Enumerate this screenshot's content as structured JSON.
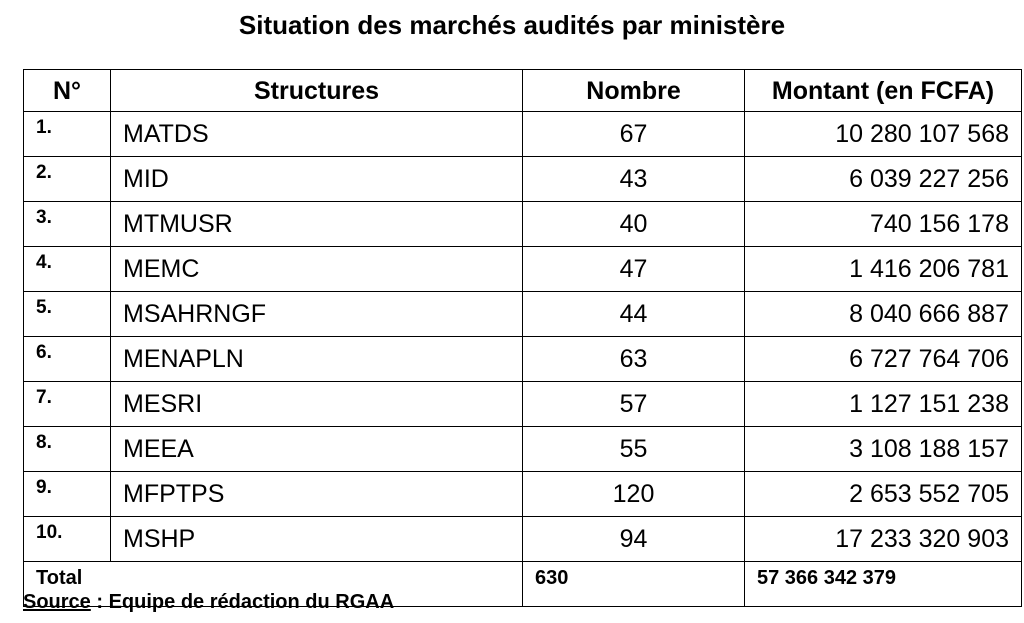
{
  "title": "Situation des marchés audités par ministère",
  "table": {
    "headers": {
      "num": "N°",
      "structures": "Structures",
      "nombre": "Nombre",
      "montant": "Montant (en FCFA)"
    },
    "rows": [
      {
        "num": "1.",
        "structure": "MATDS",
        "nombre": "67",
        "montant": "10 280 107 568"
      },
      {
        "num": "2.",
        "structure": "MID",
        "nombre": "43",
        "montant": "6 039 227 256"
      },
      {
        "num": "3.",
        "structure": "MTMUSR",
        "nombre": "40",
        "montant": "740 156 178"
      },
      {
        "num": "4.",
        "structure": "MEMC",
        "nombre": "47",
        "montant": "1 416 206 781"
      },
      {
        "num": "5.",
        "structure": "MSAHRNGF",
        "nombre": "44",
        "montant": "8 040 666 887"
      },
      {
        "num": "6.",
        "structure": "MENAPLN",
        "nombre": "63",
        "montant": "6 727 764 706"
      },
      {
        "num": "7.",
        "structure": "MESRI",
        "nombre": "57",
        "montant": "1 127 151 238"
      },
      {
        "num": "8.",
        "structure": "MEEA",
        "nombre": "55",
        "montant": "3 108 188 157"
      },
      {
        "num": "9.",
        "structure": "MFPTPS",
        "nombre": "120",
        "montant": "2 653 552 705"
      },
      {
        "num": "10.",
        "structure": "MSHP",
        "nombre": "94",
        "montant": "17 233 320 903"
      }
    ],
    "total": {
      "label": "Total",
      "nombre": "630",
      "montant": "57 366 342 379"
    }
  },
  "source": {
    "label": "Source",
    "text": " : Equipe de rédaction du RGAA"
  }
}
